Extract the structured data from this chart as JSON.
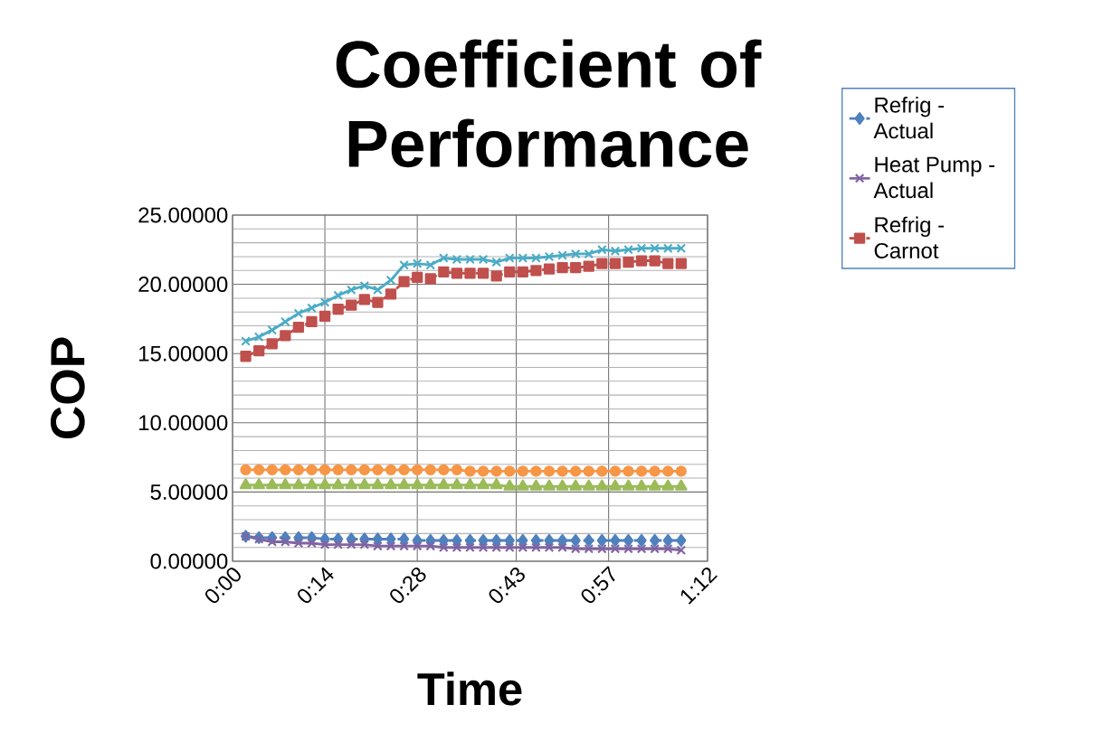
{
  "chart_data": {
    "type": "line",
    "title": "Coefficient of Performance",
    "xlabel": "Time",
    "ylabel": "COP",
    "x": [
      0.0333,
      0.0667,
      0.1,
      0.1333,
      0.1667,
      0.2,
      0.2333,
      0.2667,
      0.3,
      0.3333,
      0.3667,
      0.4,
      0.4333,
      0.4667,
      0.5,
      0.5333,
      0.5667,
      0.6,
      0.6333,
      0.6667,
      0.7,
      0.7333,
      0.7667,
      0.8,
      0.8333,
      0.8667,
      0.9,
      0.9333,
      0.9667,
      1.0,
      1.0333,
      1.0667,
      1.1,
      1.1333
    ],
    "xlim": [
      0,
      1.2
    ],
    "xticks": [
      {
        "value": 0,
        "label": "0:00"
      },
      {
        "value": 0.2333,
        "label": "0:14"
      },
      {
        "value": 0.4667,
        "label": "0:28"
      },
      {
        "value": 0.7167,
        "label": "0:43"
      },
      {
        "value": 0.95,
        "label": "0:57"
      },
      {
        "value": 1.2,
        "label": "1:12"
      }
    ],
    "ylim": [
      0,
      25
    ],
    "yticks": [
      {
        "value": 0,
        "label": "0.00000"
      },
      {
        "value": 5,
        "label": "5.00000"
      },
      {
        "value": 10,
        "label": "10.00000"
      },
      {
        "value": 15,
        "label": "15.00000"
      },
      {
        "value": 20,
        "label": "20.00000"
      },
      {
        "value": 25,
        "label": "25.00000"
      }
    ],
    "grid": true,
    "legend": "top right",
    "series": [
      {
        "name": "Refrig - Actual",
        "color": "#4f81bd",
        "marker": "diamond",
        "line_style": "dashed",
        "values": [
          1.8,
          1.7,
          1.7,
          1.7,
          1.7,
          1.7,
          1.6,
          1.6,
          1.6,
          1.6,
          1.6,
          1.6,
          1.6,
          1.5,
          1.5,
          1.5,
          1.5,
          1.5,
          1.5,
          1.5,
          1.5,
          1.5,
          1.5,
          1.5,
          1.5,
          1.5,
          1.5,
          1.5,
          1.5,
          1.5,
          1.5,
          1.5,
          1.5,
          1.5
        ]
      },
      {
        "name": "Heat Pump - Actual",
        "color": "#8064a2",
        "marker": "cross",
        "line_style": "solid",
        "values": [
          1.8,
          1.6,
          1.4,
          1.4,
          1.3,
          1.3,
          1.2,
          1.2,
          1.2,
          1.2,
          1.1,
          1.1,
          1.1,
          1.1,
          1.1,
          1.0,
          1.0,
          1.0,
          1.0,
          1.0,
          1.0,
          1.0,
          1.0,
          1.0,
          1.0,
          0.9,
          0.9,
          0.9,
          0.9,
          0.9,
          0.9,
          0.9,
          0.9,
          0.8
        ]
      },
      {
        "name": "Refrig - Carnot",
        "color": "#c0504d",
        "marker": "square",
        "line_style": "dashed",
        "values": [
          14.8,
          15.2,
          15.7,
          16.3,
          16.9,
          17.3,
          17.7,
          18.2,
          18.5,
          18.9,
          18.7,
          19.3,
          20.2,
          20.5,
          20.4,
          20.9,
          20.8,
          20.8,
          20.8,
          20.6,
          20.9,
          20.9,
          21.0,
          21.1,
          21.2,
          21.2,
          21.3,
          21.5,
          21.5,
          21.6,
          21.7,
          21.7,
          21.5,
          21.5
        ]
      },
      {
        "color": "#9bbb59",
        "marker": "triangle",
        "values": [
          5.5,
          5.5,
          5.5,
          5.5,
          5.5,
          5.5,
          5.5,
          5.5,
          5.5,
          5.5,
          5.5,
          5.5,
          5.5,
          5.5,
          5.5,
          5.5,
          5.5,
          5.5,
          5.5,
          5.5,
          5.4,
          5.4,
          5.4,
          5.4,
          5.4,
          5.4,
          5.4,
          5.4,
          5.4,
          5.4,
          5.4,
          5.4,
          5.4,
          5.4
        ]
      },
      {
        "color": "#4bacc6",
        "marker": "cross",
        "line_style": "solid",
        "values": [
          15.9,
          16.2,
          16.7,
          17.3,
          17.9,
          18.3,
          18.7,
          19.2,
          19.6,
          19.9,
          19.6,
          20.3,
          21.4,
          21.5,
          21.4,
          21.9,
          21.8,
          21.8,
          21.8,
          21.6,
          21.9,
          21.9,
          21.9,
          22.0,
          22.1,
          22.2,
          22.2,
          22.5,
          22.4,
          22.5,
          22.6,
          22.6,
          22.6,
          22.6
        ]
      },
      {
        "color": "#f79646",
        "marker": "circle",
        "values": [
          6.6,
          6.6,
          6.6,
          6.6,
          6.6,
          6.6,
          6.6,
          6.6,
          6.6,
          6.6,
          6.6,
          6.6,
          6.6,
          6.6,
          6.6,
          6.6,
          6.6,
          6.5,
          6.5,
          6.5,
          6.5,
          6.5,
          6.5,
          6.5,
          6.5,
          6.5,
          6.5,
          6.5,
          6.5,
          6.5,
          6.5,
          6.5,
          6.5,
          6.5
        ]
      }
    ]
  }
}
